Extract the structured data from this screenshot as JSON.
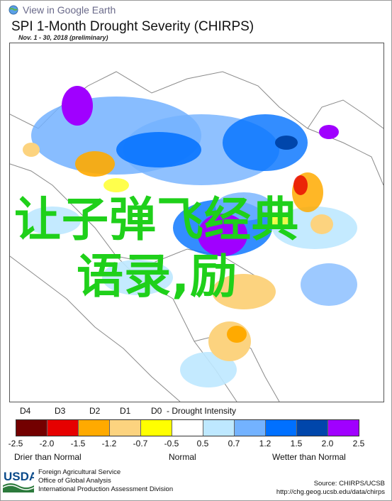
{
  "header": {
    "google_earth_link": "View in Google Earth",
    "title": "SPI 1-Month Drought Severity (CHIRPS)",
    "subtitle": "Nov. 1 - 30, 2018 (preliminary)"
  },
  "overlay_text": {
    "line1": "让子弹飞经典",
    "line2": "语录,励"
  },
  "legend": {
    "categories": [
      "D4",
      "D3",
      "D2",
      "D1",
      "D0"
    ],
    "category_suffix": "- Drought Intensity",
    "colors": [
      "#730000",
      "#e60000",
      "#ffaa00",
      "#fcd37f",
      "#ffff00",
      "#ffffff",
      "#bee8ff",
      "#73b2ff",
      "#0070ff",
      "#0046ab",
      "#a000ff"
    ],
    "ticks": [
      "-2.5",
      "-2.0",
      "-1.5",
      "-1.2",
      "-0.7",
      "-0.5",
      "0.5",
      "0.7",
      "1.2",
      "1.5",
      "2.0",
      "2.5"
    ],
    "left_caption": "Drier than Normal",
    "center_caption": "Normal",
    "right_caption": "Wetter than Normal"
  },
  "footer": {
    "logo_text": "USDA",
    "agency_lines": [
      "Foreign Agricultural Service",
      "Office of Global Analysis",
      "International Production Assessment Division"
    ],
    "source_label": "Source: CHIRPS/UCSB",
    "source_url": "http://chg.geog.ucsb.edu/data/chirps"
  }
}
